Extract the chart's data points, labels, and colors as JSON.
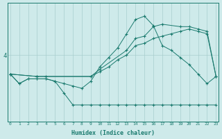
{
  "xlabel": "Humidex (Indice chaleur)",
  "background_color": "#ceeaea",
  "plot_color": "#1a7a6e",
  "grid_color": "#a8cece",
  "x_ticks": [
    0,
    1,
    2,
    3,
    4,
    5,
    6,
    7,
    8,
    9,
    10,
    11,
    12,
    13,
    14,
    15,
    16,
    17,
    18,
    19,
    20,
    21,
    22,
    23
  ],
  "ytick_val": 4,
  "series": [
    {
      "x": [
        0,
        1,
        2,
        3,
        4,
        5,
        6,
        7,
        8,
        9,
        10,
        11,
        12,
        13,
        14,
        15,
        16,
        17,
        18,
        19,
        20,
        21,
        22,
        23
      ],
      "y": [
        3.6,
        3.4,
        3.5,
        3.5,
        3.5,
        3.45,
        3.2,
        2.95,
        2.95,
        2.95,
        2.95,
        2.95,
        2.95,
        2.95,
        2.95,
        2.95,
        2.95,
        2.95,
        2.95,
        2.95,
        2.95,
        2.95,
        2.95,
        2.95
      ]
    },
    {
      "x": [
        0,
        3,
        4,
        9,
        10,
        11,
        12,
        13,
        14,
        15,
        16,
        17,
        18,
        19,
        20,
        21,
        22,
        23
      ],
      "y": [
        3.6,
        3.55,
        3.55,
        3.55,
        3.65,
        3.75,
        3.9,
        4.0,
        4.2,
        4.25,
        4.35,
        4.4,
        4.45,
        4.5,
        4.55,
        4.5,
        4.45,
        3.55
      ]
    },
    {
      "x": [
        0,
        3,
        9,
        10,
        13,
        14,
        15,
        16,
        17,
        19,
        20,
        21,
        22,
        23
      ],
      "y": [
        3.6,
        3.55,
        3.55,
        3.7,
        4.1,
        4.35,
        4.4,
        4.6,
        4.65,
        4.6,
        4.6,
        4.55,
        4.5,
        3.55
      ]
    },
    {
      "x": [
        0,
        1,
        2,
        3,
        4,
        5,
        6,
        7,
        8,
        9,
        10,
        11,
        12,
        13,
        14,
        15,
        16,
        17,
        18,
        19,
        20,
        21,
        22,
        23
      ],
      "y": [
        3.6,
        3.4,
        3.5,
        3.5,
        3.5,
        3.45,
        3.4,
        3.35,
        3.3,
        3.45,
        3.75,
        3.95,
        4.15,
        4.45,
        4.75,
        4.82,
        4.62,
        4.2,
        4.1,
        3.95,
        3.8,
        3.6,
        3.4,
        3.55
      ]
    }
  ]
}
